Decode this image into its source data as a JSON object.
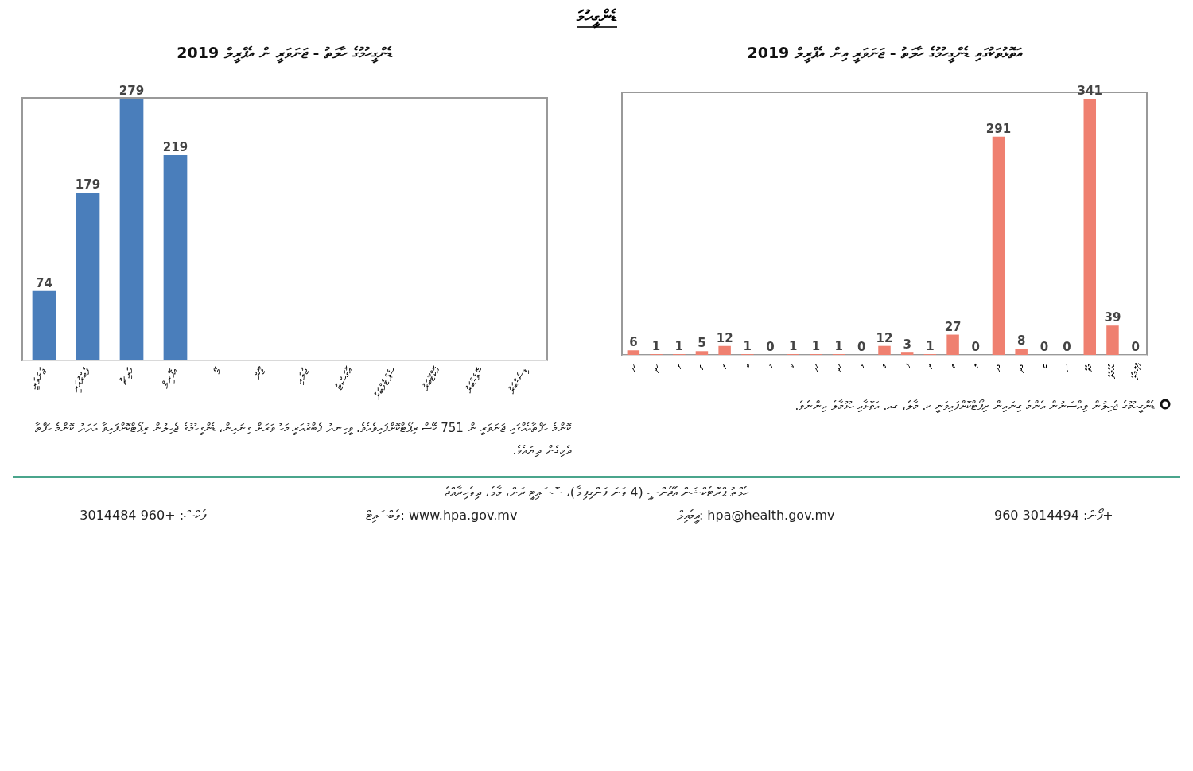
{
  "chart_data": [
    {
      "type": "other",
      "title": "ޑެންގީހުމަ"
    },
    {
      "type": "bar",
      "title": "ޑެންގީހުމުގެ ހާލަތު - ޖަނަވަރީ ން އެޕްރީލް 2019",
      "categories": [
        "ޖަނަވަރީ",
        "ފެބްރުއަރީ",
        "މާރިޗު",
        "އެޕްރީލް",
        "މޭ",
        "ޖޫން",
        "ޖުލައި",
        "އޮގަސްޓު",
        "ސެޕްޓެމްބަރު",
        "އޮކްޓޫބަރު",
        "ނޮވެމްބަރު",
        "ޑިސެމްބަރު"
      ],
      "values": [
        74,
        179,
        279,
        219,
        null,
        null,
        null,
        null,
        null,
        null,
        null,
        null
      ],
      "color": "#4a7ebb",
      "data_labels": true,
      "annotations": [
        "ކޮންމެ ހަފްތާއެއްގައި ޖަނަވަރީ ން 751 ކޭސް ރިޕޯޓްކޮށްފައިވެއެވެ. ވީހިނދު ފެބްރުއަރީ މަހު ވަރަށް ގިނައިން، ޑެންގީހުމުގެ ޖެހިލުން ރިޕޯޓްކޮށްފައިވާ އަދަދު ކޮންމެ ހަފްތާ ދެމިގެން ދިޔައެވެ."
      ]
    },
    {
      "type": "bar",
      "title": "އަތޮޅުތަކުގައި ޑެންގީހުމުގެ ހާލަތު - ޖަނަވަރީ އިން އެޕްރީލް 2019",
      "categories": [
        "ހއ",
        "ހދ",
        "ށ",
        "ނ",
        "ރ",
        "ބ",
        "ޅ",
        "ކ",
        "އއ",
        "އދ",
        "ވ",
        "މ",
        "ފ",
        "ދ",
        "ތ",
        "ލ",
        "ގއ",
        "ގދ",
        "ޏ",
        "ސ",
        "މާލެ",
        "ހުޅުމާލެ",
        "ވިލިމާލެ"
      ],
      "values": [
        6,
        1,
        1,
        5,
        12,
        1,
        0,
        1,
        1,
        1,
        0,
        12,
        3,
        1,
        27,
        0,
        291,
        8,
        0,
        0,
        341,
        39,
        0
      ],
      "color": "#ef8070",
      "data_labels": true,
      "annotations": [
        "ޑެންގީހުމުގެ ޖެހިލުން ވިއްސަނުން އެންމެ ގިނައިން ރިޕޯޓްކޮށްފައިވަނީ ކ. މާލެ، ގއ. އަތޮޅާއި ހުޅުމާލެ އިންނެވެ."
      ]
    },
    {
      "type": "other",
      "annotations": [
        "ހެލްތު ޕްރޮޓެކްޝަން އޭޖެންސީ (4 ވަނަ ފަންގިފިލާ)، ސޮސައިޓީ ރަށް، މާލެ، ދިވެހިރާއްޖެ",
        "ފޯން: 3014494 960+",
        "އީމެއިލް: hpa@health.gov.mv",
        "ވެބްސައިޓް: www.hpa.gov.mv",
        "ފެކްސް: +960 3014484"
      ]
    }
  ]
}
